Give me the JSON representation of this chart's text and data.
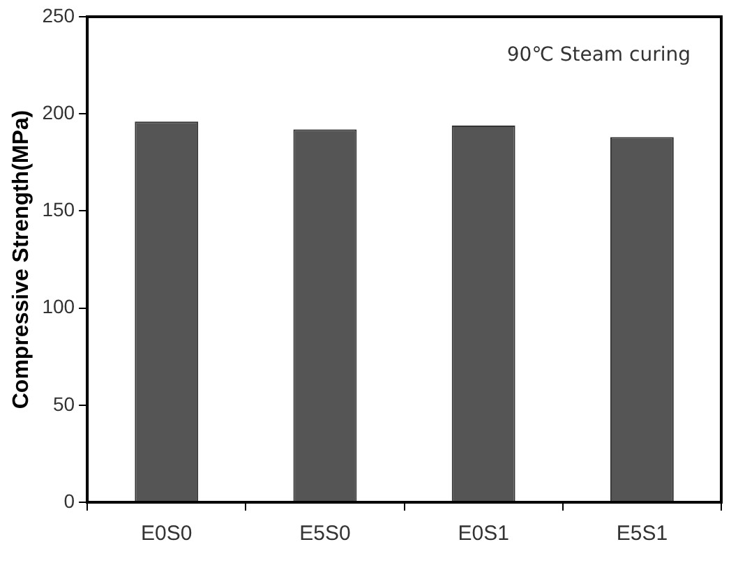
{
  "chart_data": {
    "type": "bar",
    "ylabel": "Compressive Strength(MPa)",
    "categories": [
      "E0S0",
      "E5S0",
      "E0S1",
      "E5S1"
    ],
    "values": [
      196,
      192,
      194,
      188
    ],
    "color": "#555555",
    "ylim": [
      0,
      250
    ],
    "yticks": [
      0,
      50,
      100,
      150,
      200,
      250
    ],
    "grid": false,
    "legend": false,
    "annotations": [
      "90℃ Steam curing"
    ]
  }
}
